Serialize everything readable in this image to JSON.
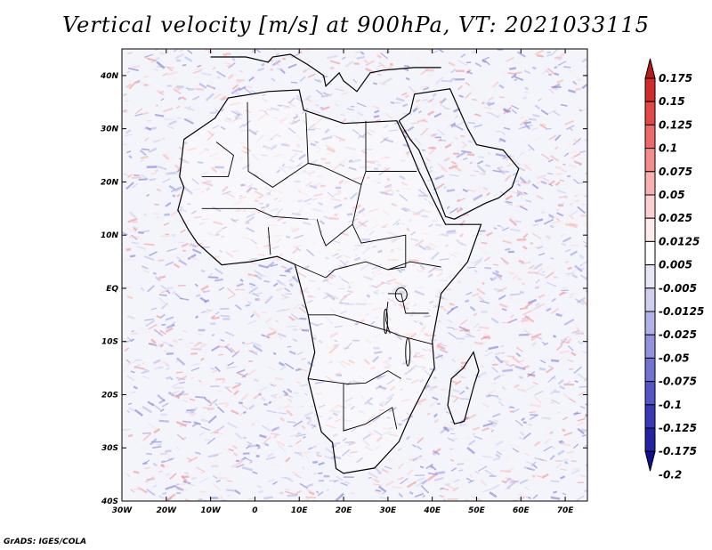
{
  "title": "Vertical velocity [m/s] at 900hPa, VT: 2021033115",
  "credit": "GrADS: IGES/COLA",
  "map": {
    "lon_labels": [
      "30W",
      "20W",
      "10W",
      "0",
      "10E",
      "20E",
      "30E",
      "40E",
      "50E",
      "60E",
      "70E"
    ],
    "lat_labels": [
      "40N",
      "30N",
      "20N",
      "10N",
      "EQ",
      "10S",
      "20S",
      "30S",
      "40S"
    ],
    "lon_range": [
      -30,
      75
    ],
    "lat_range": [
      -40,
      45
    ],
    "field_colors": {
      "positive": "#e05050",
      "negative": "#5a5ad8",
      "background": "#f4f4fb"
    },
    "coastline_color": "#000000"
  },
  "colorbar": {
    "levels": [
      "0.175",
      "0.15",
      "0.125",
      "0.1",
      "0.075",
      "0.05",
      "0.025",
      "0.0125",
      "0.005",
      "-0.005",
      "-0.0125",
      "-0.025",
      "-0.05",
      "-0.075",
      "-0.1",
      "-0.125",
      "-0.175",
      "-0.2"
    ],
    "colors": [
      "#b41c1c",
      "#d02c2c",
      "#e24848",
      "#ee6a6a",
      "#f48c8c",
      "#f8b0b0",
      "#fbd0d0",
      "#fdeaea",
      "#ffffff",
      "#e6e6f6",
      "#cfcff0",
      "#b2b2e8",
      "#9292de",
      "#7272d2",
      "#5454c6",
      "#3838b6",
      "#2222a2",
      "#101088"
    ]
  }
}
